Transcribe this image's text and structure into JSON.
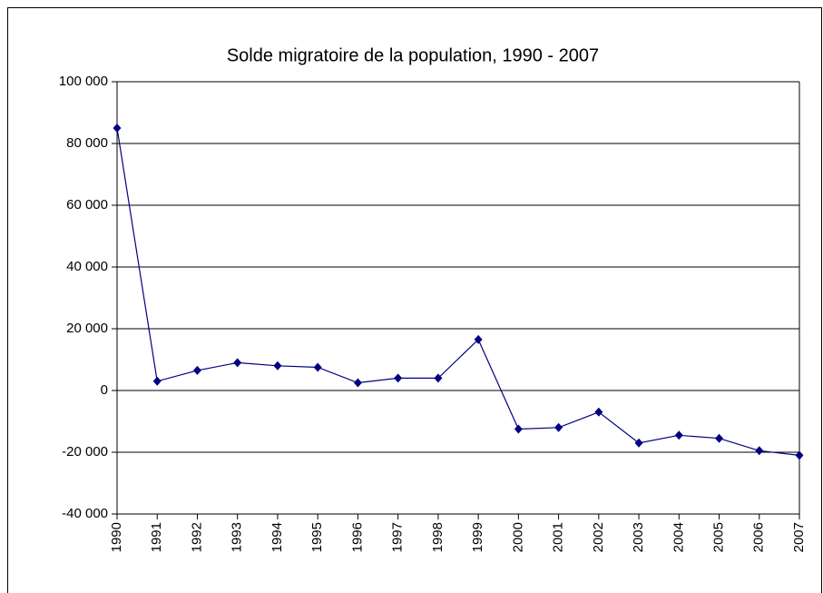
{
  "chart_data": {
    "type": "line",
    "title": "Solde migratoire de la population, 1990 - 2007",
    "categories": [
      "1990",
      "1991",
      "1992",
      "1993",
      "1994",
      "1995",
      "1996",
      "1997",
      "1998",
      "1999",
      "2000",
      "2001",
      "2002",
      "2003",
      "2004",
      "2005",
      "2006",
      "2007"
    ],
    "series": [
      {
        "name": "Solde migratoire",
        "color": "#000080",
        "values": [
          85000,
          3000,
          6500,
          9000,
          8000,
          7500,
          2500,
          4000,
          4000,
          16500,
          -12500,
          -12000,
          -7000,
          -17000,
          -14500,
          -15500,
          -19500,
          -21000
        ]
      }
    ],
    "ylim": [
      -40000,
      100000
    ],
    "yticks": [
      {
        "value": -40000,
        "label": "-40 000"
      },
      {
        "value": -20000,
        "label": "-20 000"
      },
      0,
      {
        "value": 20000,
        "label": "20 000"
      },
      {
        "value": 40000,
        "label": "40 000"
      },
      {
        "value": 60000,
        "label": "60 000"
      },
      {
        "value": 80000,
        "label": "80 000"
      },
      {
        "value": 100000,
        "label": "100 000"
      }
    ],
    "grid": true
  }
}
